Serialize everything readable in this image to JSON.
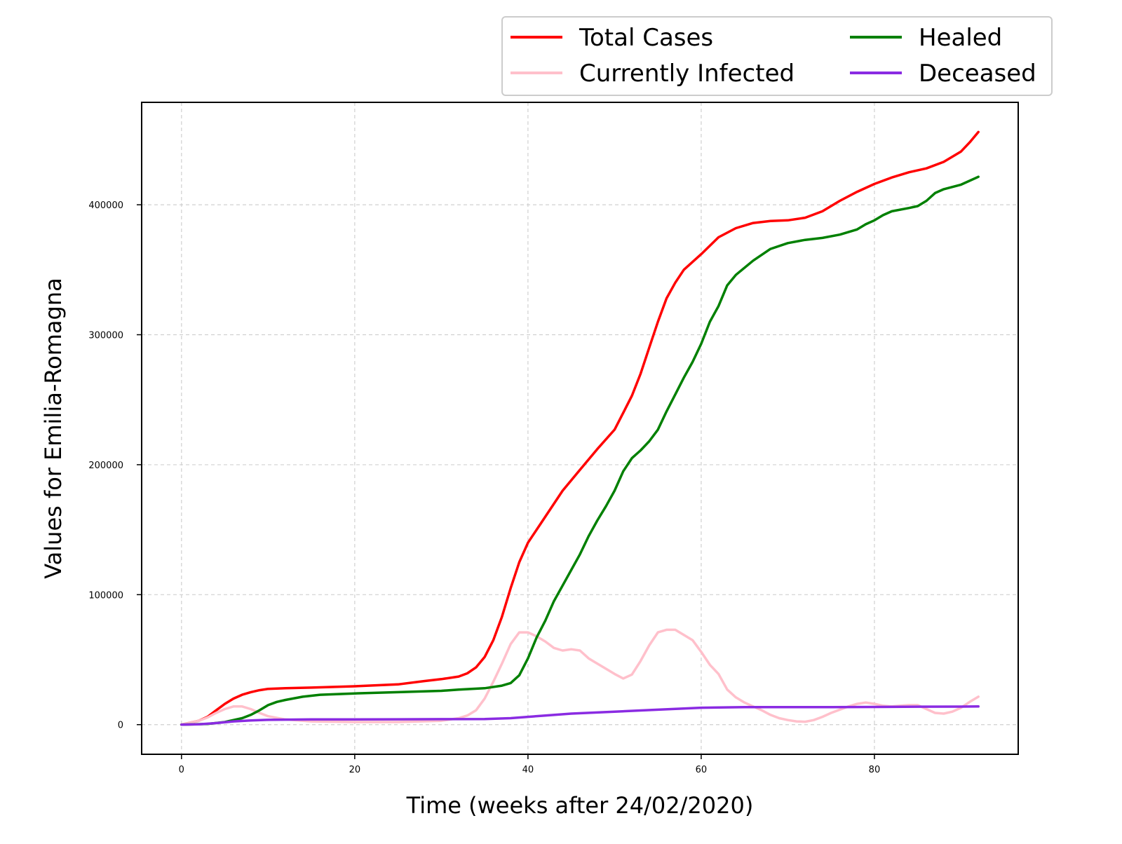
{
  "chart_data": {
    "type": "line",
    "title": "",
    "xlabel": "Time (weeks after 24/02/2020)",
    "ylabel": "Values for Emilia-Romagna",
    "xlim": [
      -4.6,
      96.6
    ],
    "ylim": [
      -22800,
      478800
    ],
    "xticks": [
      0,
      20,
      40,
      60,
      80
    ],
    "yticks": [
      0,
      100000,
      200000,
      300000,
      400000
    ],
    "grid": true,
    "legend_position": "top-right, above plot",
    "series": [
      {
        "name": "Total Cases",
        "color": "#ff0000",
        "points": [
          [
            0,
            0
          ],
          [
            1,
            1500
          ],
          [
            2,
            3000
          ],
          [
            3,
            6000
          ],
          [
            4,
            11000
          ],
          [
            5,
            16000
          ],
          [
            6,
            20000
          ],
          [
            7,
            23000
          ],
          [
            8,
            25000
          ],
          [
            9,
            26500
          ],
          [
            10,
            27500
          ],
          [
            12,
            28000
          ],
          [
            15,
            28500
          ],
          [
            20,
            29500
          ],
          [
            25,
            31000
          ],
          [
            28,
            33500
          ],
          [
            30,
            35000
          ],
          [
            32,
            37000
          ],
          [
            33,
            39500
          ],
          [
            34,
            44000
          ],
          [
            35,
            52000
          ],
          [
            36,
            65000
          ],
          [
            37,
            83000
          ],
          [
            38,
            105000
          ],
          [
            39,
            125000
          ],
          [
            40,
            140000
          ],
          [
            42,
            160000
          ],
          [
            44,
            180000
          ],
          [
            46,
            196000
          ],
          [
            48,
            212000
          ],
          [
            50,
            227000
          ],
          [
            51,
            240000
          ],
          [
            52,
            253000
          ],
          [
            53,
            270000
          ],
          [
            54,
            290000
          ],
          [
            55,
            310000
          ],
          [
            56,
            328000
          ],
          [
            57,
            340000
          ],
          [
            58,
            350000
          ],
          [
            60,
            362000
          ],
          [
            62,
            375000
          ],
          [
            64,
            382000
          ],
          [
            66,
            386000
          ],
          [
            68,
            387500
          ],
          [
            70,
            388000
          ],
          [
            72,
            390000
          ],
          [
            74,
            395000
          ],
          [
            76,
            403000
          ],
          [
            78,
            410000
          ],
          [
            80,
            416000
          ],
          [
            82,
            421000
          ],
          [
            84,
            425000
          ],
          [
            86,
            428000
          ],
          [
            88,
            433000
          ],
          [
            90,
            441000
          ],
          [
            91,
            448000
          ],
          [
            92,
            456000
          ]
        ]
      },
      {
        "name": "Currently Infected",
        "color": "#ffc0cb",
        "points": [
          [
            0,
            0
          ],
          [
            1,
            1500
          ],
          [
            2,
            3000
          ],
          [
            3,
            5500
          ],
          [
            4,
            9000
          ],
          [
            5,
            12000
          ],
          [
            6,
            14000
          ],
          [
            7,
            14000
          ],
          [
            8,
            12000
          ],
          [
            9,
            9000
          ],
          [
            10,
            6500
          ],
          [
            12,
            4000
          ],
          [
            15,
            2500
          ],
          [
            20,
            2000
          ],
          [
            25,
            2000
          ],
          [
            30,
            3000
          ],
          [
            32,
            5000
          ],
          [
            33,
            7000
          ],
          [
            34,
            11000
          ],
          [
            35,
            20000
          ],
          [
            36,
            33000
          ],
          [
            37,
            47000
          ],
          [
            38,
            62000
          ],
          [
            39,
            71000
          ],
          [
            40,
            71000
          ],
          [
            41,
            68000
          ],
          [
            42,
            64000
          ],
          [
            43,
            59000
          ],
          [
            44,
            57000
          ],
          [
            45,
            58000
          ],
          [
            46,
            57000
          ],
          [
            47,
            51000
          ],
          [
            48,
            47000
          ],
          [
            49,
            43000
          ],
          [
            50,
            39000
          ],
          [
            51,
            35500
          ],
          [
            52,
            38500
          ],
          [
            53,
            49000
          ],
          [
            54,
            61000
          ],
          [
            55,
            71000
          ],
          [
            56,
            73000
          ],
          [
            57,
            73000
          ],
          [
            58,
            69000
          ],
          [
            59,
            65000
          ],
          [
            60,
            56000
          ],
          [
            61,
            46000
          ],
          [
            62,
            39000
          ],
          [
            63,
            27000
          ],
          [
            64,
            21000
          ],
          [
            65,
            17000
          ],
          [
            66,
            14000
          ],
          [
            67,
            11000
          ],
          [
            68,
            7500
          ],
          [
            69,
            5000
          ],
          [
            70,
            3500
          ],
          [
            71,
            2500
          ],
          [
            72,
            2200
          ],
          [
            73,
            3500
          ],
          [
            74,
            6000
          ],
          [
            75,
            9000
          ],
          [
            76,
            11500
          ],
          [
            77,
            14000
          ],
          [
            78,
            16000
          ],
          [
            79,
            17000
          ],
          [
            80,
            16000
          ],
          [
            81,
            14500
          ],
          [
            82,
            14000
          ],
          [
            83,
            14500
          ],
          [
            84,
            15000
          ],
          [
            85,
            15000
          ],
          [
            86,
            12000
          ],
          [
            87,
            9000
          ],
          [
            88,
            8500
          ],
          [
            89,
            10000
          ],
          [
            90,
            13000
          ],
          [
            91,
            17500
          ],
          [
            92,
            21500
          ]
        ]
      },
      {
        "name": "Healed",
        "color": "#008000",
        "points": [
          [
            0,
            0
          ],
          [
            3,
            500
          ],
          [
            5,
            2000
          ],
          [
            6,
            3500
          ],
          [
            7,
            5000
          ],
          [
            8,
            7500
          ],
          [
            9,
            11000
          ],
          [
            10,
            15000
          ],
          [
            11,
            17500
          ],
          [
            12,
            19000
          ],
          [
            14,
            21500
          ],
          [
            16,
            23000
          ],
          [
            20,
            24000
          ],
          [
            25,
            25000
          ],
          [
            30,
            26000
          ],
          [
            32,
            27000
          ],
          [
            35,
            28000
          ],
          [
            37,
            30000
          ],
          [
            38,
            32000
          ],
          [
            39,
            38000
          ],
          [
            40,
            51000
          ],
          [
            41,
            67000
          ],
          [
            42,
            80000
          ],
          [
            43,
            95000
          ],
          [
            44,
            107000
          ],
          [
            45,
            119000
          ],
          [
            46,
            131000
          ],
          [
            47,
            145000
          ],
          [
            48,
            157000
          ],
          [
            49,
            168000
          ],
          [
            50,
            180000
          ],
          [
            51,
            195000
          ],
          [
            52,
            205000
          ],
          [
            53,
            211000
          ],
          [
            54,
            218000
          ],
          [
            55,
            227000
          ],
          [
            56,
            241000
          ],
          [
            57,
            254000
          ],
          [
            58,
            267000
          ],
          [
            59,
            279000
          ],
          [
            60,
            293000
          ],
          [
            61,
            310000
          ],
          [
            62,
            322000
          ],
          [
            63,
            338000
          ],
          [
            64,
            346000
          ],
          [
            66,
            357000
          ],
          [
            68,
            366000
          ],
          [
            70,
            370500
          ],
          [
            72,
            373000
          ],
          [
            74,
            374500
          ],
          [
            76,
            377000
          ],
          [
            78,
            381000
          ],
          [
            79,
            385000
          ],
          [
            80,
            388000
          ],
          [
            81,
            392000
          ],
          [
            82,
            395000
          ],
          [
            84,
            397500
          ],
          [
            85,
            399000
          ],
          [
            86,
            403000
          ],
          [
            87,
            409000
          ],
          [
            88,
            412000
          ],
          [
            90,
            415500
          ],
          [
            92,
            421500
          ]
        ]
      },
      {
        "name": "Deceased",
        "color": "#8a2be2",
        "points": [
          [
            0,
            0
          ],
          [
            2,
            300
          ],
          [
            4,
            1200
          ],
          [
            6,
            2500
          ],
          [
            8,
            3200
          ],
          [
            10,
            3700
          ],
          [
            15,
            4000
          ],
          [
            20,
            4000
          ],
          [
            25,
            4100
          ],
          [
            30,
            4200
          ],
          [
            35,
            4300
          ],
          [
            38,
            5000
          ],
          [
            40,
            6000
          ],
          [
            42,
            7000
          ],
          [
            45,
            8500
          ],
          [
            50,
            10000
          ],
          [
            55,
            11500
          ],
          [
            60,
            13000
          ],
          [
            65,
            13500
          ],
          [
            70,
            13500
          ],
          [
            75,
            13500
          ],
          [
            80,
            13600
          ],
          [
            85,
            13800
          ],
          [
            90,
            13900
          ],
          [
            92,
            14000
          ]
        ]
      }
    ]
  }
}
